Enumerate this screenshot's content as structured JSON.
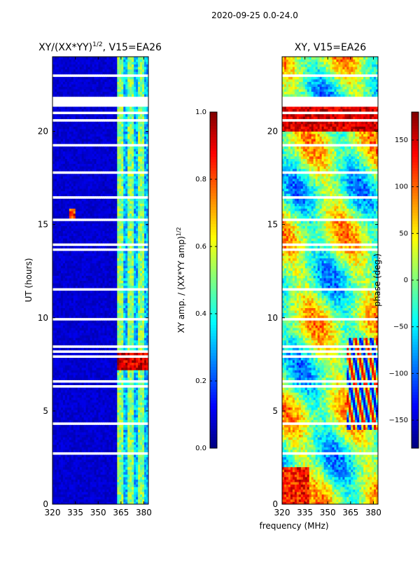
{
  "figure_title": "2020-09-25 0.0-24.0",
  "xlabel_shared": "frequency (MHz)",
  "colors": {
    "jet": [
      "#00007f",
      "#0000ff",
      "#007fff",
      "#00ffff",
      "#7fff7f",
      "#ffff00",
      "#ff7f00",
      "#ff0000",
      "#7f0000"
    ],
    "gap": "#ffffff"
  },
  "chart_data": [
    {
      "type": "heatmap",
      "name": "amplitude-ratio",
      "title": "XY/(XX*YY)",
      "title_sup": "1/2",
      "title_suffix": ", V15=EA26",
      "ylabel": "UT (hours)",
      "xlim": [
        320,
        383
      ],
      "ylim": [
        0,
        24
      ],
      "xticks": [
        320,
        335,
        350,
        365,
        380
      ],
      "yticks": [
        0,
        5,
        10,
        15,
        20
      ],
      "colorbar": {
        "label": "XY amp. / (XX*YY amp)",
        "label_sup": "1/2",
        "range": [
          0.0,
          1.0
        ],
        "ticks": [
          "0.0",
          "0.2",
          "0.4",
          "0.6",
          "0.8",
          "1.0"
        ],
        "tick_values": [
          0.0,
          0.2,
          0.4,
          0.6,
          0.8,
          1.0
        ]
      },
      "features": {
        "rfi_band_mhz": [
          363,
          383
        ],
        "high_value_period_hours": [
          7.2,
          8.3
        ],
        "hot_spot": {
          "freq": 333,
          "hour": 15.6
        }
      }
    },
    {
      "type": "heatmap",
      "name": "phase",
      "title": "XY, V15=EA26",
      "ylabel": "",
      "xlim": [
        320,
        383
      ],
      "ylim": [
        0,
        24
      ],
      "xticks": [
        320,
        335,
        350,
        365,
        380
      ],
      "yticks": [
        0,
        5,
        10,
        15,
        20
      ],
      "colorbar": {
        "label": "phase (deg.)",
        "range": [
          -180,
          180
        ],
        "ticks": [
          "150",
          "100",
          "50",
          "0",
          "−50",
          "−100",
          "−150"
        ],
        "tick_values": [
          150,
          100,
          50,
          0,
          -50,
          -100,
          -150
        ]
      }
    }
  ]
}
